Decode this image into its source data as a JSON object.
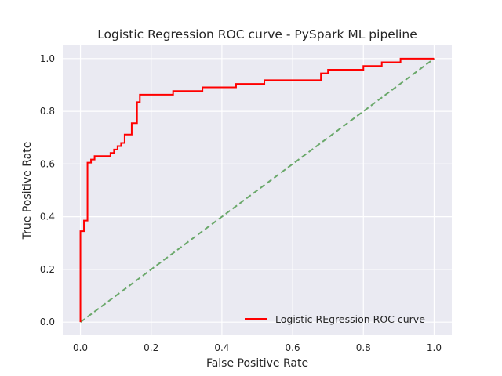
{
  "chart_data": {
    "type": "line",
    "title": "Logistic Regression ROC curve - PySpark ML pipeline",
    "xlabel": "False Positive Rate",
    "ylabel": "True Positive Rate",
    "xlim": [
      -0.05,
      1.05
    ],
    "ylim": [
      -0.05,
      1.05
    ],
    "xticks": [
      "0.0",
      "0.2",
      "0.4",
      "0.6",
      "0.8",
      "1.0"
    ],
    "yticks": [
      "0.0",
      "0.2",
      "0.4",
      "0.6",
      "0.8",
      "1.0"
    ],
    "grid": true,
    "legend_position": "lower-right",
    "series": [
      {
        "name": "Logistic REgression ROC curve",
        "color": "#ff0000",
        "style": "solid",
        "x": [
          0,
          0,
          0,
          0.01,
          0.01,
          0.02,
          0.02,
          0.03,
          0.03,
          0.04,
          0.04,
          0.085,
          0.085,
          0.095,
          0.095,
          0.105,
          0.105,
          0.115,
          0.115,
          0.125,
          0.125,
          0.145,
          0.145,
          0.16,
          0.16,
          0.168,
          0.168,
          0.262,
          0.262,
          0.345,
          0.345,
          0.44,
          0.44,
          0.52,
          0.52,
          0.68,
          0.68,
          0.7,
          0.7,
          0.8,
          0.8,
          0.852,
          0.852,
          0.905,
          0.905,
          1.0
        ],
        "y": [
          0.0,
          0.01,
          0.345,
          0.345,
          0.385,
          0.385,
          0.605,
          0.605,
          0.617,
          0.617,
          0.63,
          0.63,
          0.642,
          0.642,
          0.655,
          0.655,
          0.668,
          0.668,
          0.68,
          0.68,
          0.712,
          0.712,
          0.755,
          0.755,
          0.835,
          0.835,
          0.863,
          0.863,
          0.877,
          0.877,
          0.891,
          0.891,
          0.904,
          0.904,
          0.918,
          0.918,
          0.944,
          0.944,
          0.958,
          0.958,
          0.972,
          0.972,
          0.986,
          0.986,
          1.0,
          1.0
        ]
      },
      {
        "name": "",
        "color": "#6aa86a",
        "style": "dashed",
        "x": [
          0,
          1
        ],
        "y": [
          0,
          1
        ]
      }
    ]
  },
  "colors": {
    "plot_bg": "#eaeaf2",
    "grid": "#ffffff"
  }
}
